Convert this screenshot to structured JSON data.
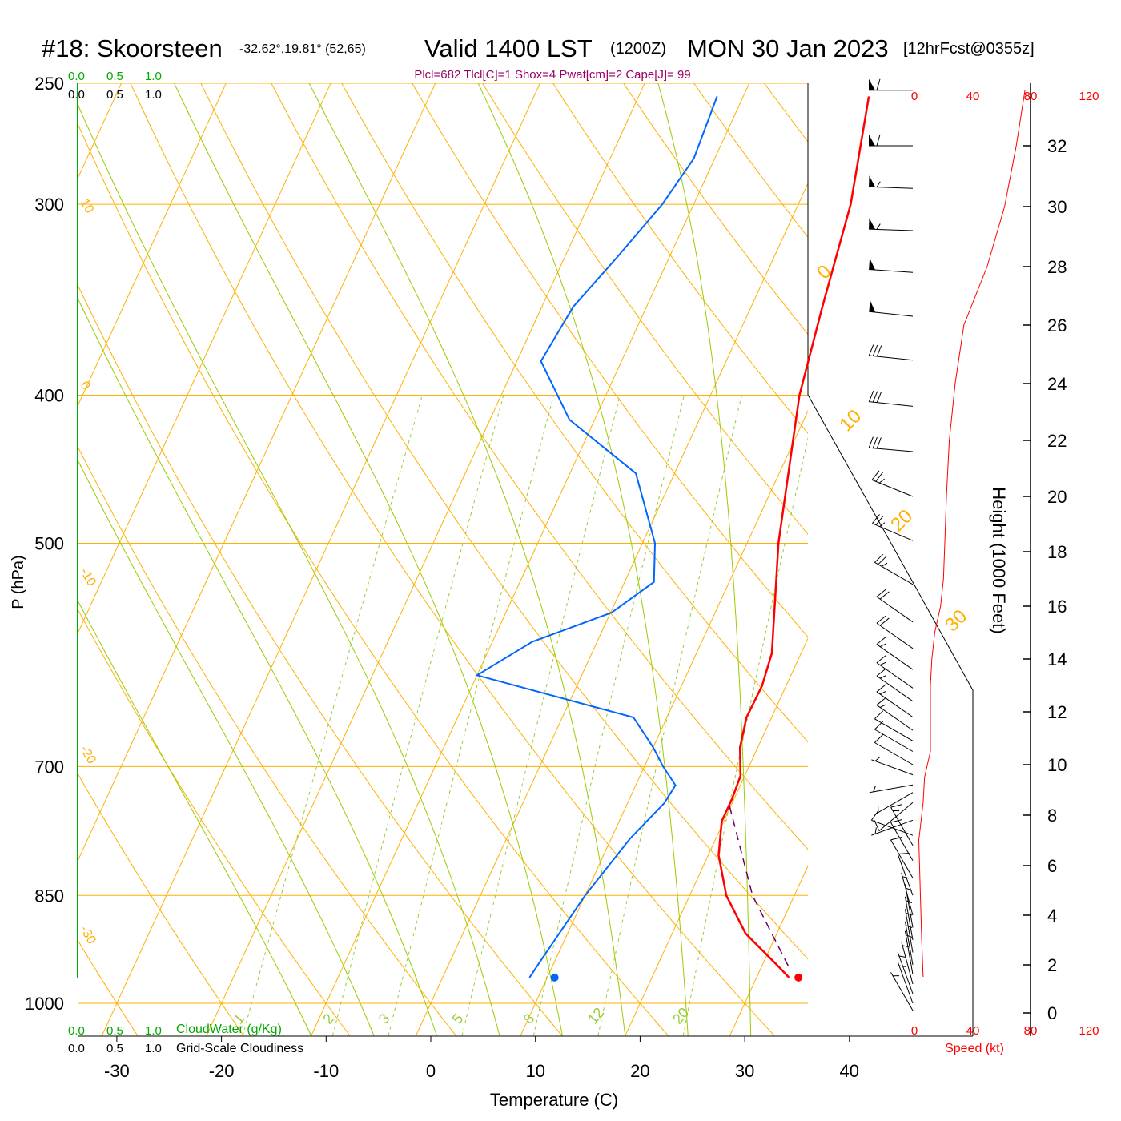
{
  "header": {
    "station": "#18: Skoorsteen",
    "location": "-32.62°,19.81° (52,65)",
    "valid": "Valid 1400 LST",
    "zulu": "(1200Z)",
    "date": "MON 30 Jan 2023",
    "forecast": "[12hrFcst@0355z]",
    "indices": "Plcl=682 Tlcl[C]=1 Shox=4 Pwat[cm]=2 Cape[J]= 99"
  },
  "colors": {
    "temperature": "#ff0000",
    "dewpoint": "#0066ff",
    "isotherm_isobar": "#ffb000",
    "moist_adiabat": "#99cc00",
    "mixing_ratio": "#99cc33",
    "parcel": "#660066",
    "cloud": "#00aa00",
    "indices": "#990066",
    "speed": "#ff0000"
  },
  "chart_data": {
    "type": "line",
    "title": "",
    "xlabel": "Temperature (C)",
    "ylabel": "P (hPa)",
    "y2label": "Height (1000 Feet)",
    "xlim": [
      -35,
      45
    ],
    "ylim": [
      1050,
      250
    ],
    "x_ticks": [
      -30,
      -20,
      -10,
      0,
      10,
      20,
      30,
      40
    ],
    "p_ticks": [
      250,
      300,
      400,
      500,
      700,
      850,
      1000
    ],
    "height_ticks": [
      0,
      2,
      4,
      6,
      8,
      10,
      12,
      14,
      16,
      18,
      20,
      22,
      24,
      26,
      28,
      30,
      32
    ],
    "dry_adiabat_labels": [
      "10",
      "0",
      "-10",
      "-20",
      "-30"
    ],
    "upper_adiabat_labels": [
      "0",
      "10",
      "20",
      "30"
    ],
    "mixing_ratio_labels": [
      "1",
      "2",
      "3",
      "5",
      "8",
      "12",
      "20"
    ],
    "cloud_scales": {
      "cloudwater_ticks": [
        "0.0",
        "0.5",
        "1.0"
      ],
      "cloudiness_ticks": [
        "0.0",
        "0.5",
        "1.0"
      ],
      "cloudwater_label": "CloudWater (g/Kg)",
      "cloudiness_label": "Grid-Scale Cloudiness"
    },
    "wind_speed": {
      "label": "Speed (kt)",
      "ticks": [
        "0",
        "40",
        "80",
        "120"
      ]
    },
    "series": [
      {
        "name": "Temperature",
        "points": [
          [
            33.1,
            962
          ],
          [
            31.5,
            945
          ],
          [
            27.0,
            900
          ],
          [
            23.5,
            850
          ],
          [
            21.0,
            800
          ],
          [
            19.8,
            760
          ],
          [
            19.8,
            735
          ],
          [
            19.6,
            710
          ],
          [
            18.3,
            680
          ],
          [
            17.6,
            650
          ],
          [
            17.7,
            620
          ],
          [
            17.2,
            590
          ],
          [
            13.0,
            500
          ],
          [
            8.5,
            400
          ],
          [
            6.8,
            350
          ],
          [
            5.0,
            300
          ],
          [
            2.0,
            255
          ]
        ]
      },
      {
        "name": "Dewpoint",
        "points": [
          [
            8.3,
            962
          ],
          [
            8.6,
            940
          ],
          [
            10.0,
            850
          ],
          [
            11.8,
            780
          ],
          [
            13.5,
            740
          ],
          [
            13.8,
            720
          ],
          [
            11.8,
            700
          ],
          [
            10.0,
            680
          ],
          [
            6.8,
            650
          ],
          [
            -10.0,
            610
          ],
          [
            -6.2,
            580
          ],
          [
            0.1,
            555
          ],
          [
            2.8,
            530
          ],
          [
            1.2,
            500
          ],
          [
            -3.7,
            450
          ],
          [
            -12.4,
            415
          ],
          [
            -17.7,
            380
          ],
          [
            -17.0,
            350
          ],
          [
            -15.0,
            325
          ],
          [
            -13.0,
            300
          ],
          [
            -12.0,
            280
          ],
          [
            -12.5,
            255
          ]
        ]
      },
      {
        "name": "Parcel",
        "points": [
          [
            32.5,
            945
          ],
          [
            26.0,
            850
          ],
          [
            19.7,
            740
          ]
        ]
      }
    ],
    "surface_markers": [
      {
        "name": "Surface temperature",
        "t": 34.0,
        "p": 962
      },
      {
        "name": "Surface dewpoint",
        "t": 10.7,
        "p": 962
      }
    ],
    "wind_barbs": [
      {
        "h": 33.8,
        "dir": 270,
        "spd": 60
      },
      {
        "h": 32.0,
        "dir": 270,
        "spd": 60
      },
      {
        "h": 30.6,
        "dir": 272,
        "spd": 55
      },
      {
        "h": 29.2,
        "dir": 272,
        "spd": 55
      },
      {
        "h": 27.8,
        "dir": 274,
        "spd": 50
      },
      {
        "h": 26.3,
        "dir": 276,
        "spd": 50
      },
      {
        "h": 24.8,
        "dir": 276,
        "spd": 30
      },
      {
        "h": 23.2,
        "dir": 276,
        "spd": 30
      },
      {
        "h": 21.6,
        "dir": 275,
        "spd": 30
      },
      {
        "h": 20.0,
        "dir": 292,
        "spd": 25
      },
      {
        "h": 18.4,
        "dir": 293,
        "spd": 25
      },
      {
        "h": 16.8,
        "dir": 300,
        "spd": 25
      },
      {
        "h": 15.4,
        "dir": 305,
        "spd": 20
      },
      {
        "h": 14.4,
        "dir": 305,
        "spd": 20
      },
      {
        "h": 13.6,
        "dir": 305,
        "spd": 15
      },
      {
        "h": 12.9,
        "dir": 305,
        "spd": 15
      },
      {
        "h": 12.4,
        "dir": 305,
        "spd": 15
      },
      {
        "h": 11.8,
        "dir": 305,
        "spd": 15
      },
      {
        "h": 11.3,
        "dir": 305,
        "spd": 15
      },
      {
        "h": 10.9,
        "dir": 300,
        "spd": 10
      },
      {
        "h": 10.5,
        "dir": 300,
        "spd": 10
      },
      {
        "h": 10.0,
        "dir": 300,
        "spd": 10
      },
      {
        "h": 9.6,
        "dir": 290,
        "spd": 5
      },
      {
        "h": 9.2,
        "dir": 260,
        "spd": 5
      },
      {
        "h": 8.9,
        "dir": 240,
        "spd": 5
      },
      {
        "h": 8.5,
        "dir": 230,
        "spd": 10
      },
      {
        "h": 7.8,
        "dir": 250,
        "spd": 5
      },
      {
        "h": 7.2,
        "dir": 290,
        "spd": 10
      },
      {
        "h": 6.8,
        "dir": 330,
        "spd": 15
      },
      {
        "h": 6.2,
        "dir": 330,
        "spd": 10
      },
      {
        "h": 5.5,
        "dir": 330,
        "spd": 10
      },
      {
        "h": 4.8,
        "dir": 340,
        "spd": 10
      },
      {
        "h": 4.0,
        "dir": 345,
        "spd": 5
      },
      {
        "h": 3.5,
        "dir": 350,
        "spd": 5
      },
      {
        "h": 3.0,
        "dir": 350,
        "spd": 5
      },
      {
        "h": 2.5,
        "dir": 350,
        "spd": 5
      },
      {
        "h": 2.0,
        "dir": 350,
        "spd": 5
      },
      {
        "h": 1.6,
        "dir": 350,
        "spd": 5
      },
      {
        "h": 1.2,
        "dir": 345,
        "spd": 5
      },
      {
        "h": 0.8,
        "dir": 340,
        "spd": 5
      },
      {
        "h": 0.4,
        "dir": 340,
        "spd": 5
      },
      {
        "h": 0.1,
        "dir": 330,
        "spd": 5
      }
    ],
    "wind_speed_profile": [
      [
        1.5,
        6
      ],
      [
        3.0,
        5
      ],
      [
        5.0,
        4
      ],
      [
        7.0,
        3
      ],
      [
        8.5,
        6
      ],
      [
        9.5,
        7
      ],
      [
        10.5,
        11
      ],
      [
        11.5,
        11
      ],
      [
        12.5,
        11
      ],
      [
        13.0,
        11
      ],
      [
        14.0,
        12
      ],
      [
        15.0,
        14
      ],
      [
        16.0,
        18
      ],
      [
        17.0,
        20
      ],
      [
        18.5,
        21
      ],
      [
        20.0,
        22
      ],
      [
        22.0,
        24
      ],
      [
        24.0,
        28
      ],
      [
        26.0,
        34
      ],
      [
        28.0,
        50
      ],
      [
        30.0,
        62
      ],
      [
        32.0,
        70
      ],
      [
        33.8,
        76
      ]
    ]
  }
}
